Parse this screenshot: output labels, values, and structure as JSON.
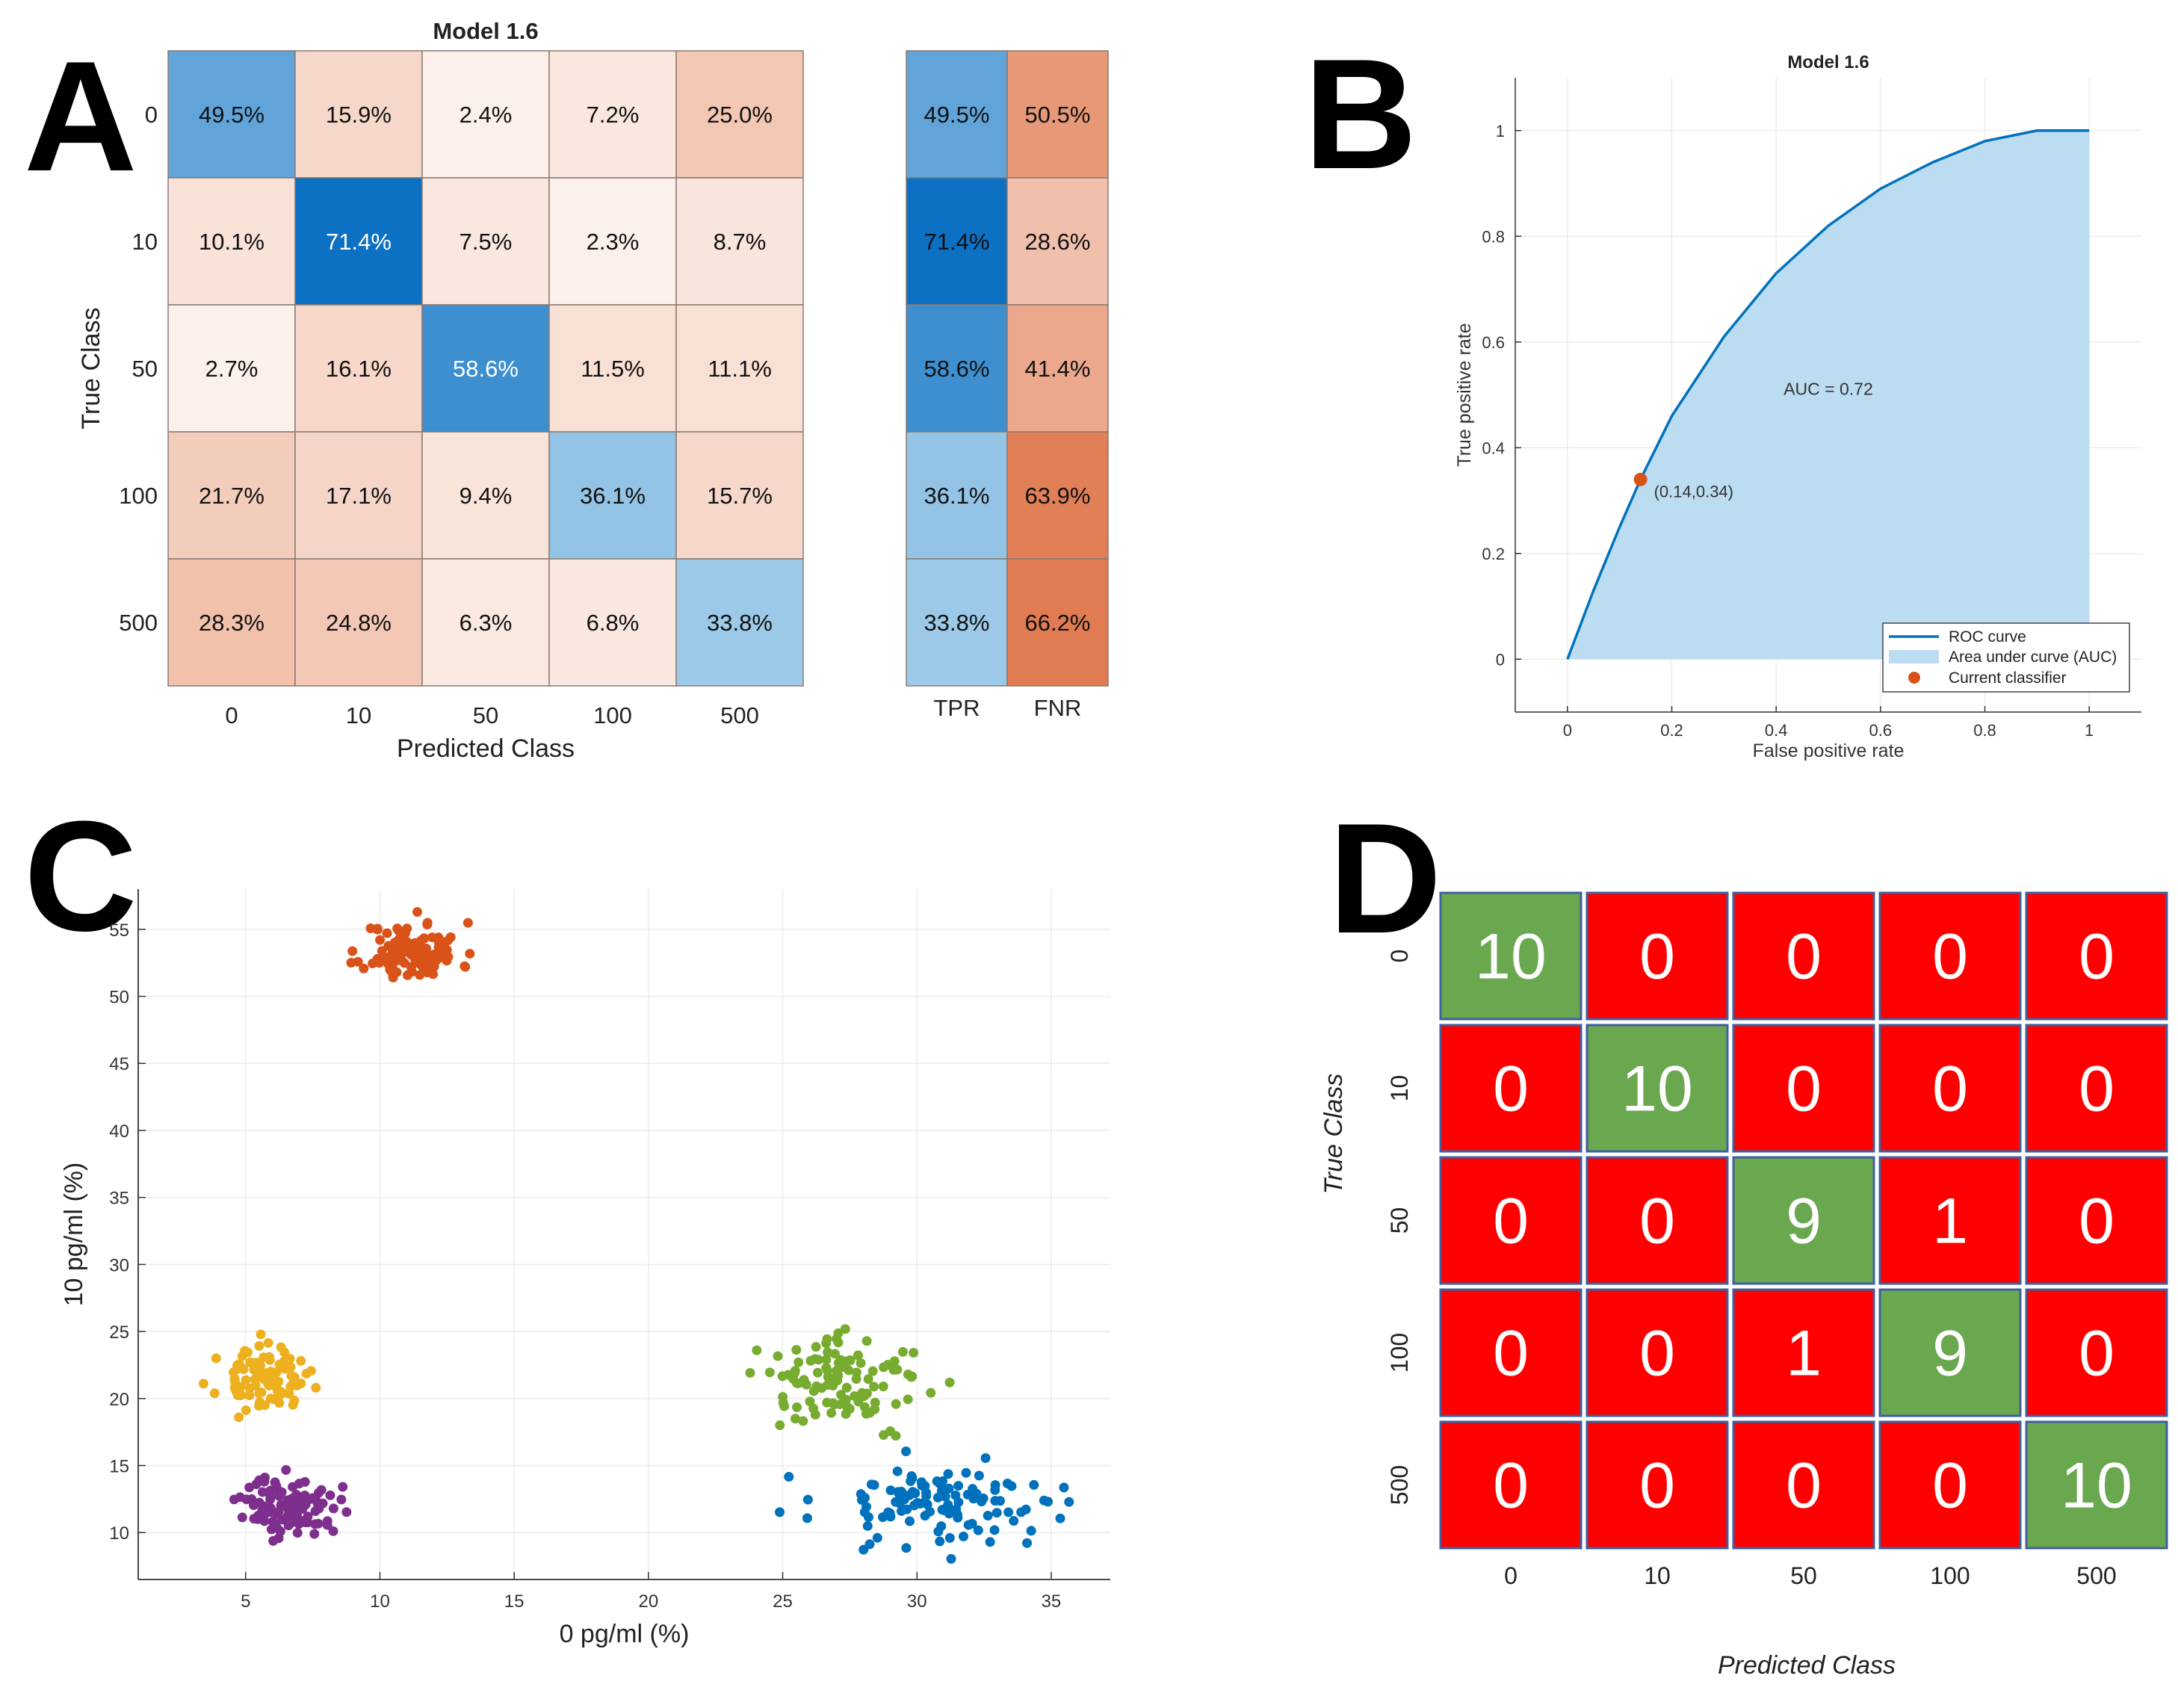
{
  "panels": {
    "a_letter": "A",
    "b_letter": "B",
    "c_letter": "C",
    "d_letter": "D"
  },
  "colors": {
    "blue_strong": "#0a6fc2",
    "orange_strong": "#e07b52",
    "roc_line": "#0072bd",
    "roc_fill": "#bcdcf2",
    "roc_point": "#d95319",
    "d_correct": "#6aa84f",
    "d_wrong": "#ff0000",
    "d_border": "#3f5f9f",
    "scatter_orange": "#d95319",
    "scatter_yellow": "#edb120",
    "scatter_purple": "#7e2f8e",
    "scatter_green": "#77ac30",
    "scatter_blue": "#0072bd"
  },
  "chart_data": [
    {
      "type": "heatmap",
      "panel": "A",
      "title": "Model 1.6",
      "xlabel": "Predicted Class",
      "ylabel": "True Class",
      "categories": [
        "0",
        "10",
        "50",
        "100",
        "500"
      ],
      "values": [
        [
          49.5,
          15.9,
          2.4,
          7.2,
          25.0
        ],
        [
          10.1,
          71.4,
          7.5,
          2.3,
          8.7
        ],
        [
          2.7,
          16.1,
          58.6,
          11.5,
          11.1
        ],
        [
          21.7,
          17.1,
          9.4,
          36.1,
          15.7
        ],
        [
          28.3,
          24.8,
          6.3,
          6.8,
          33.8
        ]
      ],
      "labels": [
        [
          "49.5%",
          "15.9%",
          "2.4%",
          "7.2%",
          "25.0%"
        ],
        [
          "10.1%",
          "71.4%",
          "7.5%",
          "2.3%",
          "8.7%"
        ],
        [
          "2.7%",
          "16.1%",
          "58.6%",
          "11.5%",
          "11.1%"
        ],
        [
          "21.7%",
          "17.1%",
          "9.4%",
          "36.1%",
          "15.7%"
        ],
        [
          "28.3%",
          "24.8%",
          "6.3%",
          "6.8%",
          "33.8%"
        ]
      ],
      "summary_columns": [
        "TPR",
        "FNR"
      ],
      "summary_values": [
        [
          49.5,
          50.5
        ],
        [
          71.4,
          28.6
        ],
        [
          58.6,
          41.4
        ],
        [
          36.1,
          63.9
        ],
        [
          33.8,
          66.2
        ]
      ],
      "summary_labels": [
        [
          "49.5%",
          "50.5%"
        ],
        [
          "71.4%",
          "28.6%"
        ],
        [
          "58.6%",
          "41.4%"
        ],
        [
          "36.1%",
          "63.9%"
        ],
        [
          "33.8%",
          "66.2%"
        ]
      ]
    },
    {
      "type": "area",
      "panel": "B",
      "title": "Model 1.6",
      "xlabel": "False positive rate",
      "ylabel": "True positive rate",
      "xlim": [
        -0.1,
        1.1
      ],
      "ylim": [
        -0.1,
        1.1
      ],
      "xticks": [
        0,
        0.2,
        0.4,
        0.6,
        0.8,
        1
      ],
      "yticks": [
        0,
        0.2,
        0.4,
        0.6,
        0.8,
        1
      ],
      "xtick_labels": [
        "0",
        "0.2",
        "0.4",
        "0.6",
        "0.8",
        "1"
      ],
      "ytick_labels": [
        "0",
        "0.2",
        "0.4",
        "0.6",
        "0.8",
        "1"
      ],
      "x": [
        0,
        0.05,
        0.1,
        0.14,
        0.2,
        0.3,
        0.4,
        0.5,
        0.6,
        0.7,
        0.8,
        0.9,
        1.0
      ],
      "y": [
        0,
        0.13,
        0.25,
        0.34,
        0.46,
        0.61,
        0.73,
        0.82,
        0.89,
        0.94,
        0.98,
        1.0,
        1.0
      ],
      "auc_label": "AUC = 0.72",
      "point": {
        "x": 0.14,
        "y": 0.34,
        "label": "(0.14,0.34)"
      },
      "legend": [
        "ROC curve",
        "Area under curve (AUC)",
        "Current classifier"
      ],
      "legend_position": "bottom-right",
      "grid": true
    },
    {
      "type": "scatter",
      "panel": "C",
      "xlabel": "0 pg/ml (%)",
      "ylabel": "10 pg/ml (%)",
      "xlim": [
        1,
        37.2
      ],
      "ylim": [
        6.5,
        58
      ],
      "xticks": [
        5,
        10,
        15,
        20,
        25,
        30,
        35
      ],
      "yticks": [
        10,
        15,
        20,
        25,
        30,
        35,
        40,
        45,
        50,
        55
      ],
      "grid": true,
      "series": [
        {
          "name": "orange cluster",
          "color": "#d95319",
          "center": [
            11.2,
            53.3
          ],
          "spread": [
            0.9,
            1.1
          ],
          "count": 110,
          "seed": 11
        },
        {
          "name": "yellow cluster",
          "color": "#edb120",
          "center": [
            5.6,
            21.4
          ],
          "spread": [
            0.8,
            1.1
          ],
          "count": 90,
          "seed": 23
        },
        {
          "name": "purple cluster",
          "color": "#7e2f8e",
          "center": [
            6.7,
            12.0
          ],
          "spread": [
            0.9,
            1.1
          ],
          "count": 100,
          "seed": 37
        },
        {
          "name": "green cluster",
          "color": "#77ac30",
          "center": [
            27.3,
            21.3
          ],
          "spread": [
            1.5,
            1.6
          ],
          "count": 110,
          "seed": 41
        },
        {
          "name": "blue cluster",
          "color": "#0072bd",
          "center": [
            31.0,
            12.3
          ],
          "spread": [
            2.3,
            1.5
          ],
          "count": 120,
          "seed": 53
        }
      ]
    },
    {
      "type": "table",
      "panel": "D",
      "xlabel": "Predicted Class",
      "ylabel": "True Class",
      "categories": [
        "0",
        "10",
        "50",
        "100",
        "500"
      ],
      "values": [
        [
          10,
          0,
          0,
          0,
          0
        ],
        [
          0,
          10,
          0,
          0,
          0
        ],
        [
          0,
          0,
          9,
          1,
          0
        ],
        [
          0,
          0,
          1,
          9,
          0
        ],
        [
          0,
          0,
          0,
          0,
          10
        ]
      ],
      "labels": [
        [
          "10",
          "0",
          "0",
          "0",
          "0"
        ],
        [
          "0",
          "10",
          "0",
          "0",
          "0"
        ],
        [
          "0",
          "0",
          "9",
          "1",
          "0"
        ],
        [
          "0",
          "0",
          "1",
          "9",
          "0"
        ],
        [
          "0",
          "0",
          "0",
          "0",
          "10"
        ]
      ]
    }
  ]
}
